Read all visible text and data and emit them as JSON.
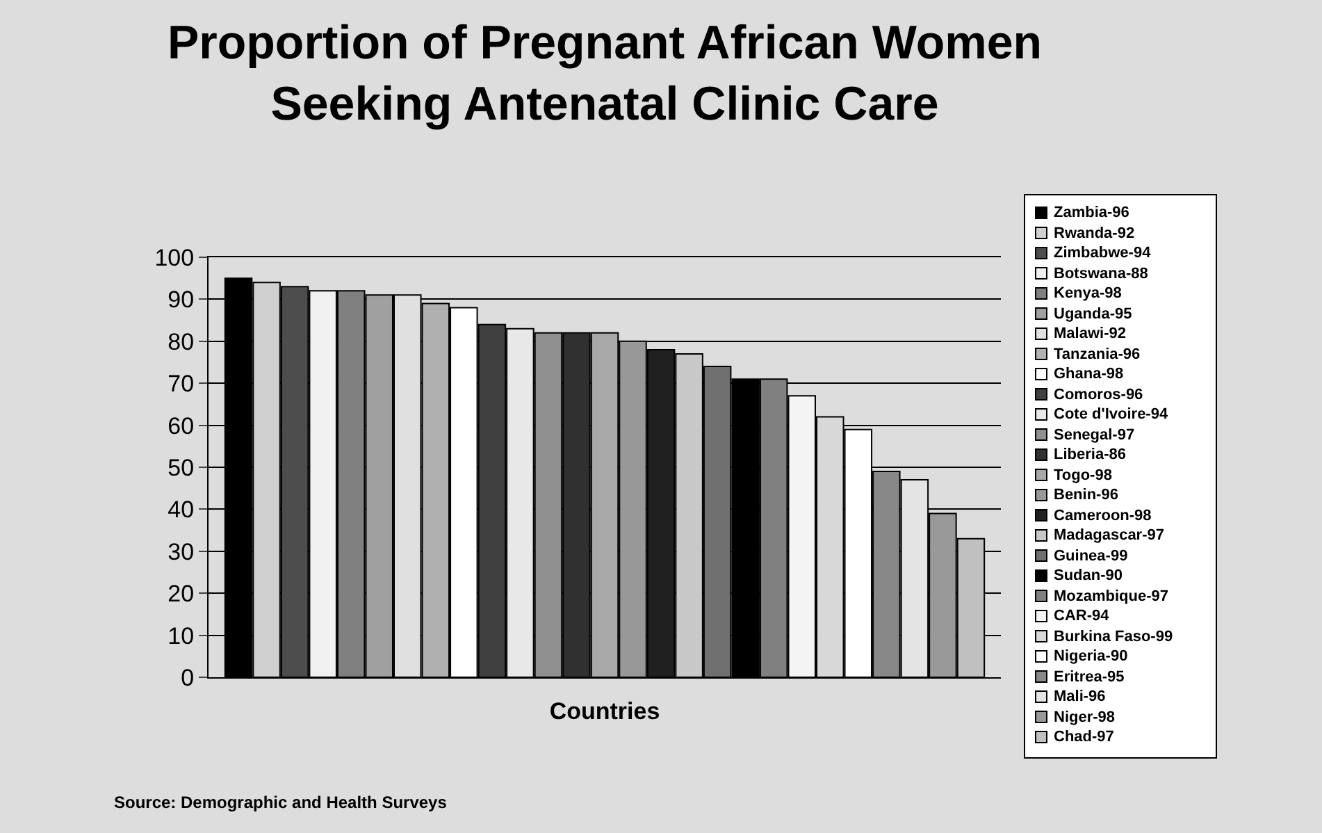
{
  "chart_data": {
    "type": "bar",
    "title": "Proportion of Pregnant African Women\nSeeking Antenatal Clinic Care",
    "xlabel": "Countries",
    "categories": [
      null
    ],
    "series": [
      {
        "name": "Zambia-96",
        "color": "#000000",
        "values": [
          95
        ]
      },
      {
        "name": "Rwanda-92",
        "color": "#d0d0d0",
        "values": [
          94
        ]
      },
      {
        "name": "Zimbabwe-94",
        "color": "#4d4d4d",
        "values": [
          93
        ]
      },
      {
        "name": "Botswana-88",
        "color": "#f0f0f0",
        "values": [
          92
        ]
      },
      {
        "name": "Kenya-98",
        "color": "#808080",
        "values": [
          92
        ]
      },
      {
        "name": "Uganda-95",
        "color": "#a0a0a0",
        "values": [
          91
        ]
      },
      {
        "name": "Malawi-92",
        "color": "#e0e0e0",
        "values": [
          91
        ]
      },
      {
        "name": "Tanzania-96",
        "color": "#b0b0b0",
        "values": [
          89
        ]
      },
      {
        "name": "Ghana-98",
        "color": "#ffffff",
        "values": [
          88
        ]
      },
      {
        "name": "Comoros-96",
        "color": "#404040",
        "values": [
          84
        ]
      },
      {
        "name": "Cote d'Ivoire-94",
        "color": "#e8e8e8",
        "values": [
          83
        ]
      },
      {
        "name": "Senegal-97",
        "color": "#909090",
        "values": [
          82
        ]
      },
      {
        "name": "Liberia-86",
        "color": "#303030",
        "values": [
          82
        ]
      },
      {
        "name": "Togo-98",
        "color": "#a8a8a8",
        "values": [
          82
        ]
      },
      {
        "name": "Benin-96",
        "color": "#989898",
        "values": [
          80
        ]
      },
      {
        "name": "Cameroon-98",
        "color": "#202020",
        "values": [
          78
        ]
      },
      {
        "name": "Madagascar-97",
        "color": "#c8c8c8",
        "values": [
          77
        ]
      },
      {
        "name": "Guinea-99",
        "color": "#707070",
        "values": [
          74
        ]
      },
      {
        "name": "Sudan-90",
        "color": "#000000",
        "values": [
          71
        ]
      },
      {
        "name": "Mozambique-97",
        "color": "#808080",
        "values": [
          71
        ]
      },
      {
        "name": "CAR-94",
        "color": "#f4f4f4",
        "values": [
          67
        ]
      },
      {
        "name": "Burkina Faso-99",
        "color": "#d8d8d8",
        "values": [
          62
        ]
      },
      {
        "name": "Nigeria-90",
        "color": "#ffffff",
        "values": [
          59
        ]
      },
      {
        "name": "Eritrea-95",
        "color": "#888888",
        "values": [
          49
        ]
      },
      {
        "name": "Mali-96",
        "color": "#e4e4e4",
        "values": [
          47
        ]
      },
      {
        "name": "Niger-98",
        "color": "#999999",
        "values": [
          39
        ]
      },
      {
        "name": "Chad-97",
        "color": "#c0c0c0",
        "values": [
          33
        ]
      }
    ],
    "ylim": [
      0,
      100
    ],
    "yticks": [
      0,
      10,
      20,
      30,
      40,
      50,
      60,
      70,
      80,
      90,
      100
    ],
    "grid": "y",
    "legend": "right",
    "annotations": [
      "Source: Demographic and Health Surveys"
    ]
  }
}
